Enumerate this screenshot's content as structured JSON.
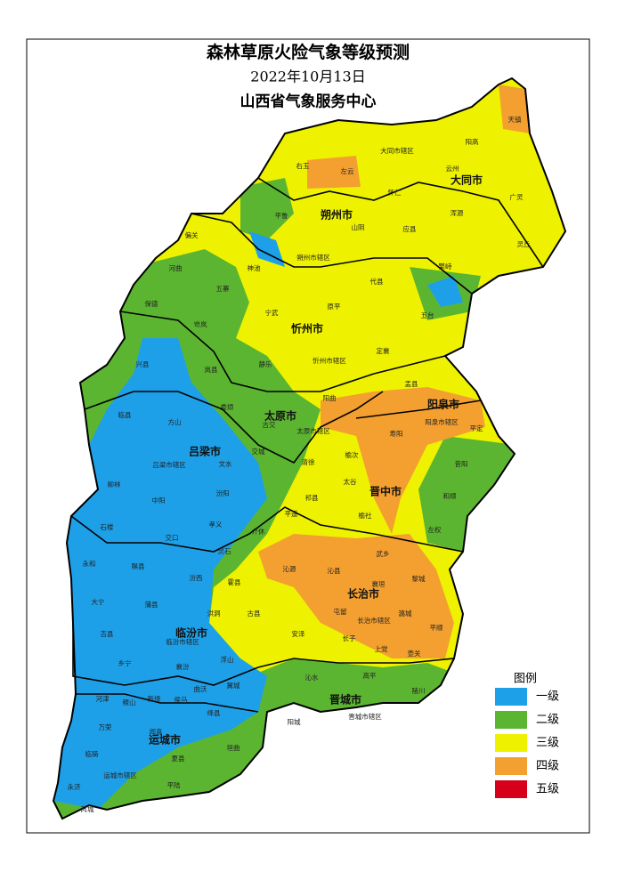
{
  "header": {
    "title": "森林草原火险气象等级预测",
    "date": "2022年10月13日",
    "issuer": "山西省气象服务中心"
  },
  "map": {
    "cities": [
      "大同市",
      "朔州市",
      "忻州市",
      "阳泉市",
      "太原市",
      "吕梁市",
      "晋中市",
      "长治市",
      "临汾市",
      "晋城市",
      "运城市"
    ],
    "counties": [
      "天镇",
      "阳高",
      "大同市辖区",
      "左云",
      "右玉",
      "云州",
      "怀仁",
      "浑源",
      "广灵",
      "平鲁",
      "山阴",
      "应县",
      "灵丘",
      "偏关",
      "朔州市辖区",
      "河曲",
      "代县",
      "繁峙",
      "五寨",
      "保德",
      "神池",
      "宁武",
      "原平",
      "五台",
      "岢岚",
      "兴县",
      "岚县",
      "静乐",
      "忻州市辖区",
      "定襄",
      "盂县",
      "阳曲",
      "临县",
      "方山",
      "娄烦",
      "古交",
      "太原市辖区",
      "阳泉市辖区",
      "平定",
      "寿阳",
      "交城",
      "吕梁市辖区",
      "文水",
      "清徐",
      "榆次",
      "昔阳",
      "柳林",
      "汾阳",
      "太谷",
      "和顺",
      "中阳",
      "祁县",
      "平遥",
      "石楼",
      "孝义",
      "介休",
      "榆社",
      "左权",
      "交口",
      "灵石",
      "武乡",
      "永和",
      "隰县",
      "汾西",
      "沁源",
      "沁县",
      "黎城",
      "霍县",
      "襄垣",
      "大宁",
      "蒲县",
      "古县",
      "潞城",
      "洪洞",
      "屯留",
      "长治市辖区",
      "吉县",
      "临汾市辖区",
      "安泽",
      "平顺",
      "长子",
      "壶关",
      "上党",
      "乡宁",
      "襄汾",
      "浮山",
      "沁水",
      "高平",
      "陵川",
      "曲沃",
      "翼城",
      "河津",
      "稷山",
      "新绛",
      "侯马",
      "绛县",
      "阳城",
      "晋城市辖区",
      "万荣",
      "闻喜",
      "垣曲",
      "临猗",
      "运城市辖区",
      "夏县",
      "永济",
      "平陆",
      "芮城"
    ]
  },
  "legend": {
    "title": "图例",
    "items": [
      {
        "label": "一级",
        "color": "#1ea0e8"
      },
      {
        "label": "二级",
        "color": "#5cb531"
      },
      {
        "label": "三级",
        "color": "#eef200"
      },
      {
        "label": "四级",
        "color": "#f4a030"
      },
      {
        "label": "五级",
        "color": "#d7001b"
      }
    ]
  }
}
